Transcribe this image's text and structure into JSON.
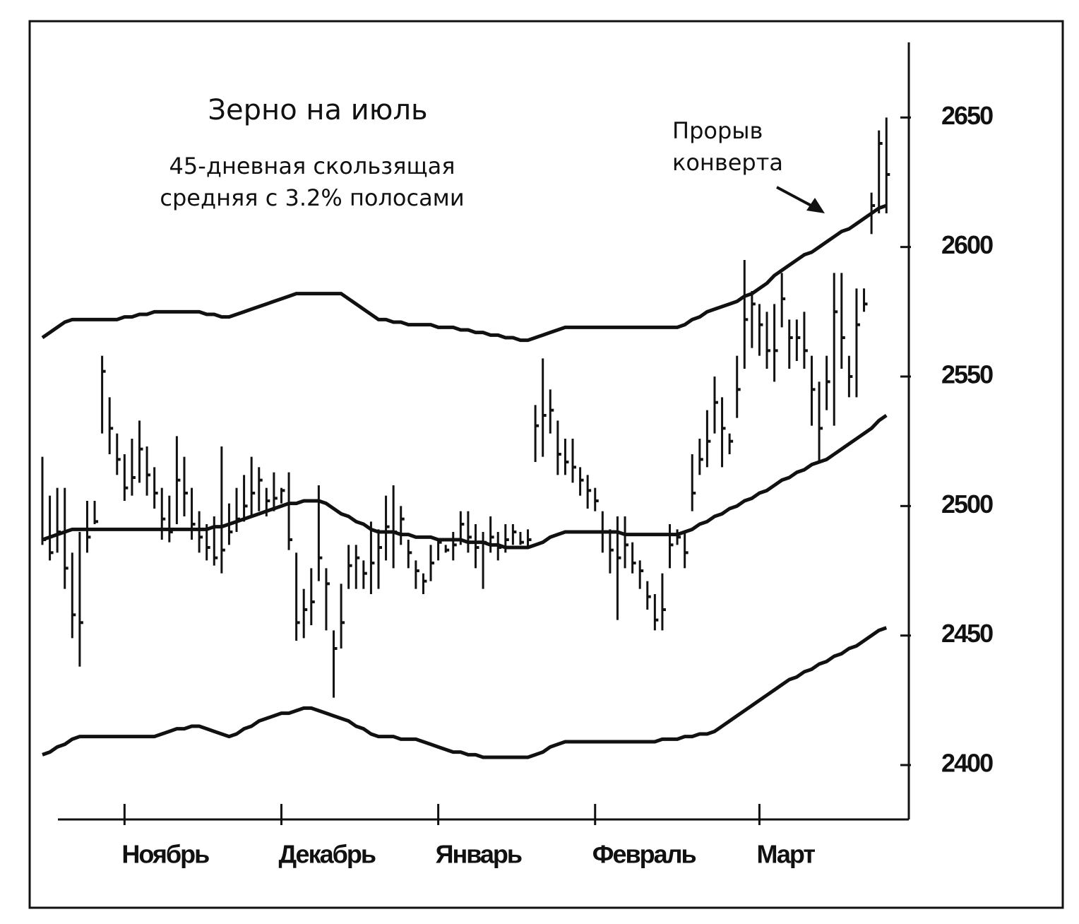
{
  "chart_data": {
    "type": "ohlc",
    "title": "Зерно на июль",
    "subtitle": [
      "45-дневная скользящая",
      "средняя с 3.2% полосами"
    ],
    "annotation": [
      "Прорыв",
      "конверта"
    ],
    "color": "#111111",
    "xlim": [
      0,
      116
    ],
    "xticks": [
      {
        "value": 11,
        "label": "Ноябрь"
      },
      {
        "value": 32,
        "label": "Декабрь"
      },
      {
        "value": 53,
        "label": "Январь"
      },
      {
        "value": 74,
        "label": "Февраль"
      },
      {
        "value": 96,
        "label": "Март"
      }
    ],
    "ylim": [
      2379,
      2679
    ],
    "yticks": [
      2400,
      2450,
      2500,
      2550,
      2600,
      2650
    ],
    "high": [
      2519,
      2504,
      2507,
      2507,
      2482,
      2490,
      2502,
      2502,
      2558,
      2542,
      2528,
      2520,
      2526,
      2533,
      2523,
      2515,
      2507,
      2504,
      2527,
      2519,
      2507,
      2498,
      2493,
      2496,
      2523,
      2501,
      2507,
      2512,
      2519,
      2515,
      2507,
      2513,
      2507,
      2513,
      2482,
      2468,
      2476,
      2508,
      2476,
      2452,
      2470,
      2485,
      2485,
      2479,
      2494,
      2491,
      2504,
      2508,
      2500,
      2487,
      2479,
      2474,
      2485,
      2487,
      2485,
      2490,
      2498,
      2498,
      2493,
      2490,
      2496,
      2490,
      2493,
      2493,
      2490,
      2491,
      2539,
      2557,
      2545,
      2533,
      2526,
      2526,
      2515,
      2512,
      2507,
      2498,
      2491,
      2496,
      2496,
      2486,
      2479,
      2471,
      2466,
      2474,
      2493,
      2491,
      2490,
      2520,
      2526,
      2537,
      2550,
      2542,
      2528,
      2558,
      2595,
      2583,
      2578,
      2575,
      2578,
      2590,
      2572,
      2572,
      2575,
      2558,
      2548,
      2558,
      2590,
      2590,
      2558,
      2584,
      2584,
      2621,
      2645,
      2650
    ],
    "low": [
      2485,
      2479,
      2482,
      2468,
      2449,
      2438,
      2482,
      2493,
      2528,
      2520,
      2512,
      2502,
      2504,
      2509,
      2504,
      2499,
      2487,
      2486,
      2493,
      2496,
      2487,
      2482,
      2479,
      2477,
      2474,
      2485,
      2490,
      2494,
      2496,
      2498,
      2496,
      2498,
      2501,
      2483,
      2448,
      2449,
      2454,
      2471,
      2452,
      2426,
      2445,
      2468,
      2468,
      2468,
      2466,
      2468,
      2479,
      2476,
      2485,
      2476,
      2468,
      2466,
      2471,
      2479,
      2482,
      2479,
      2485,
      2482,
      2476,
      2468,
      2482,
      2479,
      2482,
      2485,
      2485,
      2484,
      2517,
      2519,
      2528,
      2512,
      2512,
      2509,
      2504,
      2499,
      2498,
      2482,
      2474,
      2456,
      2476,
      2474,
      2468,
      2460,
      2452,
      2452,
      2476,
      2485,
      2476,
      2498,
      2512,
      2515,
      2528,
      2515,
      2520,
      2534,
      2553,
      2561,
      2558,
      2553,
      2548,
      2569,
      2553,
      2556,
      2553,
      2531,
      2517,
      2537,
      2531,
      2553,
      2542,
      2542,
      2575,
      2605,
      2613,
      2613
    ],
    "close": [
      2487,
      2482,
      2490,
      2476,
      2458,
      2455,
      2488,
      2494,
      2552,
      2530,
      2518,
      2507,
      2511,
      2522,
      2512,
      2505,
      2495,
      2490,
      2510,
      2505,
      2493,
      2488,
      2484,
      2480,
      2483,
      2490,
      2495,
      2500,
      2505,
      2510,
      2502,
      2503,
      2506,
      2487,
      2455,
      2460,
      2463,
      2480,
      2470,
      2445,
      2455,
      2477,
      2480,
      2474,
      2478,
      2484,
      2492,
      2490,
      2495,
      2482,
      2475,
      2471,
      2478,
      2486,
      2483,
      2485,
      2493,
      2488,
      2484,
      2486,
      2488,
      2484,
      2487,
      2490,
      2486,
      2487,
      2531,
      2535,
      2537,
      2520,
      2517,
      2515,
      2510,
      2506,
      2502,
      2490,
      2483,
      2480,
      2485,
      2478,
      2475,
      2465,
      2456,
      2460,
      2485,
      2488,
      2482,
      2505,
      2518,
      2525,
      2540,
      2530,
      2525,
      2545,
      2572,
      2578,
      2570,
      2560,
      2560,
      2580,
      2565,
      2565,
      2560,
      2545,
      2530,
      2548,
      2575,
      2565,
      2550,
      2570,
      2578,
      2616,
      2640,
      2628
    ],
    "moving_average": [
      2487,
      2488,
      2489,
      2490,
      2491,
      2491,
      2491,
      2491,
      2491,
      2491,
      2491,
      2491,
      2491,
      2491,
      2491,
      2491,
      2491,
      2491,
      2491,
      2491,
      2491,
      2491,
      2491,
      2492,
      2492,
      2493,
      2494,
      2495,
      2496,
      2497,
      2498,
      2499,
      2500,
      2501,
      2501,
      2502,
      2502,
      2502,
      2501,
      2499,
      2497,
      2496,
      2494,
      2493,
      2491,
      2490,
      2490,
      2490,
      2489,
      2489,
      2488,
      2488,
      2488,
      2487,
      2487,
      2487,
      2487,
      2486,
      2486,
      2486,
      2485,
      2485,
      2484,
      2484,
      2484,
      2484,
      2485,
      2486,
      2488,
      2489,
      2490,
      2490,
      2490,
      2490,
      2490,
      2490,
      2490,
      2490,
      2489,
      2489,
      2489,
      2489,
      2489,
      2489,
      2489,
      2489,
      2490,
      2491,
      2493,
      2494,
      2496,
      2497,
      2499,
      2500,
      2502,
      2503,
      2505,
      2506,
      2508,
      2510,
      2511,
      2513,
      2514,
      2516,
      2517,
      2518,
      2520,
      2522,
      2524,
      2526,
      2528,
      2530,
      2533,
      2535
    ],
    "upper_band": [
      2565,
      2567,
      2569,
      2571,
      2572,
      2572,
      2572,
      2572,
      2572,
      2572,
      2572,
      2573,
      2573,
      2574,
      2574,
      2575,
      2575,
      2575,
      2575,
      2575,
      2575,
      2575,
      2574,
      2574,
      2573,
      2573,
      2574,
      2575,
      2576,
      2577,
      2578,
      2579,
      2580,
      2581,
      2582,
      2582,
      2582,
      2582,
      2582,
      2582,
      2582,
      2580,
      2578,
      2576,
      2574,
      2572,
      2572,
      2571,
      2571,
      2570,
      2570,
      2570,
      2570,
      2569,
      2569,
      2569,
      2568,
      2568,
      2567,
      2567,
      2566,
      2566,
      2565,
      2565,
      2564,
      2564,
      2565,
      2566,
      2567,
      2568,
      2569,
      2569,
      2569,
      2569,
      2569,
      2569,
      2569,
      2569,
      2569,
      2569,
      2569,
      2569,
      2569,
      2569,
      2569,
      2569,
      2570,
      2572,
      2573,
      2575,
      2576,
      2577,
      2578,
      2579,
      2581,
      2582,
      2584,
      2586,
      2589,
      2591,
      2593,
      2595,
      2597,
      2598,
      2600,
      2602,
      2604,
      2606,
      2607,
      2609,
      2611,
      2613,
      2615,
      2616
    ],
    "lower_band": [
      2404,
      2405,
      2407,
      2408,
      2410,
      2411,
      2411,
      2411,
      2411,
      2411,
      2411,
      2411,
      2411,
      2411,
      2411,
      2411,
      2412,
      2413,
      2414,
      2414,
      2415,
      2415,
      2414,
      2413,
      2412,
      2411,
      2412,
      2414,
      2415,
      2417,
      2418,
      2419,
      2420,
      2420,
      2421,
      2422,
      2422,
      2421,
      2420,
      2419,
      2418,
      2417,
      2415,
      2414,
      2412,
      2411,
      2411,
      2411,
      2410,
      2410,
      2410,
      2409,
      2408,
      2407,
      2406,
      2405,
      2405,
      2404,
      2404,
      2403,
      2403,
      2403,
      2403,
      2403,
      2403,
      2403,
      2404,
      2405,
      2407,
      2408,
      2409,
      2409,
      2409,
      2409,
      2409,
      2409,
      2409,
      2409,
      2409,
      2409,
      2409,
      2409,
      2409,
      2410,
      2410,
      2410,
      2411,
      2411,
      2412,
      2412,
      2413,
      2415,
      2417,
      2419,
      2421,
      2423,
      2425,
      2427,
      2429,
      2431,
      2433,
      2434,
      2436,
      2437,
      2439,
      2440,
      2442,
      2443,
      2445,
      2446,
      2448,
      2450,
      2452,
      2453
    ]
  }
}
